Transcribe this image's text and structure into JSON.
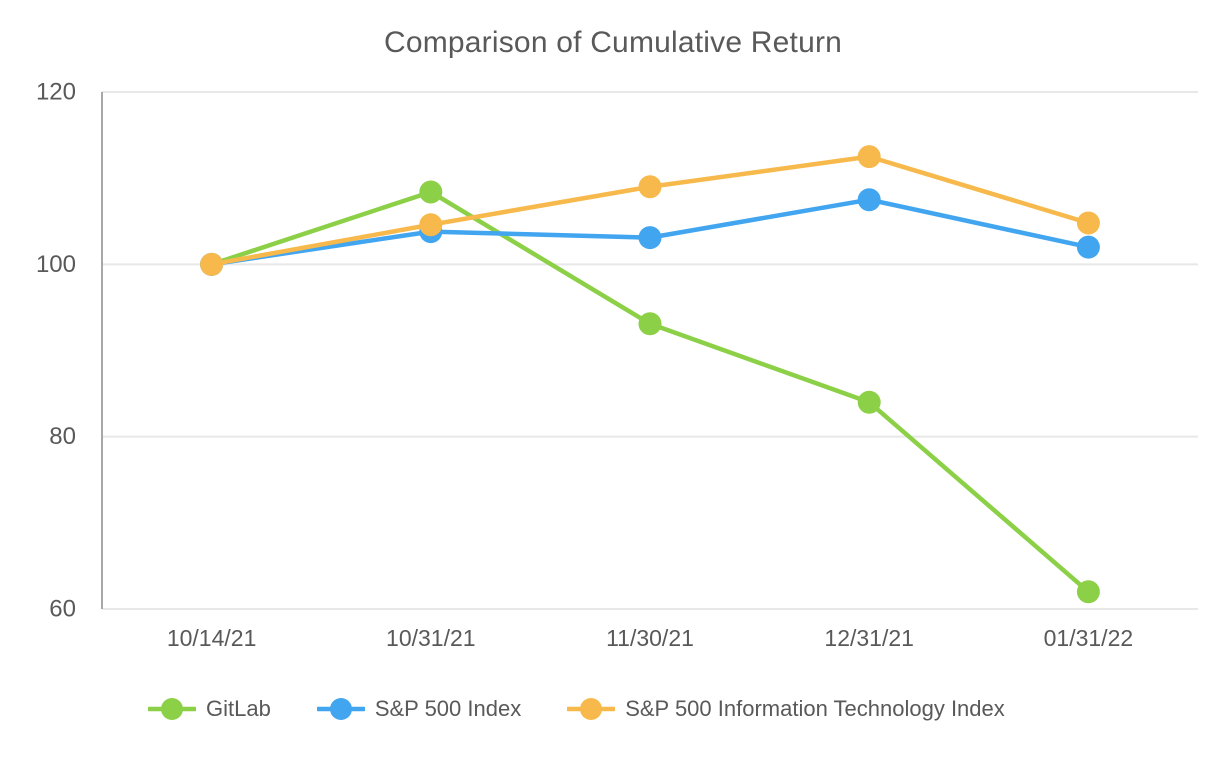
{
  "chart": {
    "background_color": "#ffffff",
    "text_color": "#595959",
    "gridline_color": "#e8e8e8",
    "axis_line_color": "#a8a8a8"
  },
  "chart_data": {
    "type": "line",
    "title": "Comparison of Cumulative Return",
    "categories": [
      "10/14/21",
      "10/31/21",
      "11/30/21",
      "12/31/21",
      "01/31/22"
    ],
    "series": [
      {
        "name": "GitLab",
        "color": "#8CD047",
        "values": [
          100,
          108.4,
          93.1,
          84,
          62
        ]
      },
      {
        "name": "S&P 500 Index",
        "color": "#41A5F0",
        "values": [
          100,
          103.8,
          103.1,
          107.5,
          102
        ]
      },
      {
        "name": "S&P 500 Information Technology Index",
        "color": "#F7B94B",
        "values": [
          100,
          104.6,
          109,
          112.5,
          104.8
        ]
      }
    ],
    "xlabel": "",
    "ylabel": "",
    "ylim": [
      60,
      120
    ],
    "yticks": [
      120,
      100,
      80,
      60
    ],
    "grid": "horizontal",
    "legend_position": "bottom",
    "marker_style": "circle",
    "line_width": 4.5,
    "marker_radius": 11.5
  }
}
